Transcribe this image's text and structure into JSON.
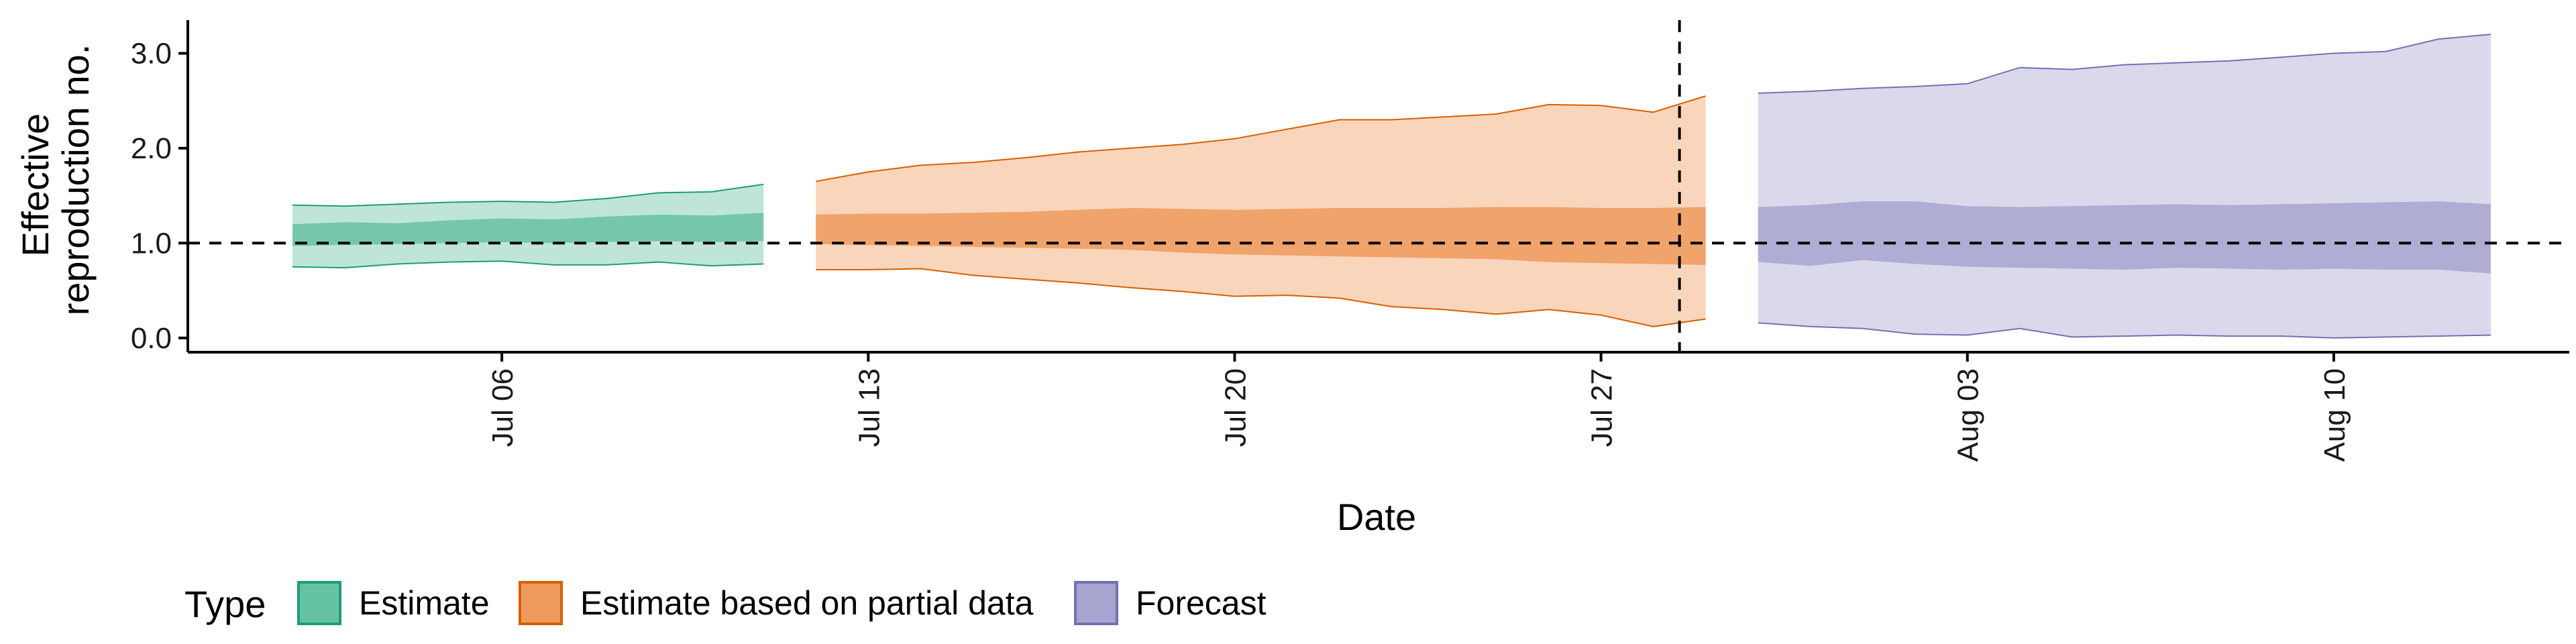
{
  "chart_data": {
    "type": "area",
    "xlabel": "Date",
    "ylabel_lines": [
      "Effective",
      "reproduction no."
    ],
    "ylim": [
      -0.15,
      3.35
    ],
    "y_ticks": [
      {
        "value": 0.0,
        "label": "0.0"
      },
      {
        "value": 1.0,
        "label": "1.0"
      },
      {
        "value": 2.0,
        "label": "2.0"
      },
      {
        "value": 3.0,
        "label": "3.0"
      }
    ],
    "x_ticks": [
      {
        "value": 5,
        "label": "Jul 06"
      },
      {
        "value": 12,
        "label": "Jul 13"
      },
      {
        "value": 19,
        "label": "Jul 20"
      },
      {
        "value": 26,
        "label": "Jul 27"
      },
      {
        "value": 33,
        "label": "Aug 03"
      },
      {
        "value": 40,
        "label": "Aug 10"
      }
    ],
    "xlim": [
      -1.0,
      44.5
    ],
    "hline_value": 1.0,
    "vline_value": 27.5,
    "legend": {
      "title": "Type",
      "position": "bottom-left",
      "entries": [
        {
          "label": "Estimate",
          "key": "estimate"
        },
        {
          "label": "Estimate based on partial data",
          "key": "partial"
        },
        {
          "label": "Forecast",
          "key": "forecast"
        }
      ]
    },
    "series": [
      {
        "key": "estimate",
        "color_fill": "#66c2a5",
        "color_line": "#1b9e77",
        "x": [
          1,
          2,
          3,
          4,
          5,
          6,
          7,
          8,
          9,
          10
        ],
        "outer_lower": [
          0.75,
          0.74,
          0.78,
          0.8,
          0.81,
          0.77,
          0.77,
          0.8,
          0.76,
          0.78
        ],
        "outer_upper": [
          1.4,
          1.39,
          1.41,
          1.43,
          1.44,
          1.43,
          1.47,
          1.53,
          1.54,
          1.62
        ],
        "inner_lower": [
          0.97,
          0.98,
          0.99,
          1.0,
          1.01,
          1.0,
          1.01,
          1.02,
          1.01,
          1.02
        ],
        "inner_upper": [
          1.2,
          1.22,
          1.21,
          1.24,
          1.26,
          1.25,
          1.28,
          1.3,
          1.29,
          1.32
        ]
      },
      {
        "key": "partial",
        "color_fill": "#ee9a5c",
        "color_line": "#d95f02",
        "x": [
          11,
          12,
          13,
          14,
          15,
          16,
          17,
          18,
          19,
          20,
          21,
          22,
          23,
          24,
          25,
          26,
          27,
          28
        ],
        "outer_lower": [
          0.72,
          0.72,
          0.73,
          0.66,
          0.62,
          0.58,
          0.53,
          0.49,
          0.44,
          0.45,
          0.42,
          0.33,
          0.3,
          0.25,
          0.3,
          0.24,
          0.12,
          0.2
        ],
        "outer_upper": [
          1.65,
          1.75,
          1.82,
          1.85,
          1.9,
          1.96,
          2.0,
          2.04,
          2.1,
          2.2,
          2.3,
          2.3,
          2.33,
          2.36,
          2.46,
          2.45,
          2.38,
          2.55
        ],
        "inner_lower": [
          0.99,
          0.98,
          0.97,
          0.96,
          0.95,
          0.94,
          0.93,
          0.9,
          0.88,
          0.87,
          0.86,
          0.85,
          0.84,
          0.83,
          0.8,
          0.79,
          0.78,
          0.77
        ],
        "inner_upper": [
          1.3,
          1.31,
          1.31,
          1.32,
          1.33,
          1.35,
          1.37,
          1.36,
          1.35,
          1.36,
          1.37,
          1.37,
          1.37,
          1.38,
          1.38,
          1.37,
          1.37,
          1.38
        ]
      },
      {
        "key": "forecast",
        "color_fill": "#a8a4d0",
        "color_line": "#7570b3",
        "x": [
          29,
          30,
          31,
          32,
          33,
          34,
          35,
          36,
          37,
          38,
          39,
          40,
          41,
          42,
          43
        ],
        "outer_lower": [
          0.16,
          0.12,
          0.1,
          0.04,
          0.03,
          0.1,
          0.01,
          0.02,
          0.03,
          0.02,
          0.02,
          0.0,
          0.01,
          0.02,
          0.03
        ],
        "outer_upper": [
          2.58,
          2.6,
          2.63,
          2.65,
          2.68,
          2.85,
          2.83,
          2.88,
          2.9,
          2.92,
          2.96,
          3.0,
          3.02,
          3.15,
          3.2
        ],
        "inner_lower": [
          0.8,
          0.76,
          0.82,
          0.78,
          0.75,
          0.74,
          0.73,
          0.72,
          0.74,
          0.73,
          0.72,
          0.73,
          0.72,
          0.72,
          0.68
        ],
        "inner_upper": [
          1.38,
          1.4,
          1.44,
          1.44,
          1.39,
          1.38,
          1.39,
          1.4,
          1.41,
          1.4,
          1.41,
          1.42,
          1.43,
          1.44,
          1.41
        ]
      }
    ]
  }
}
